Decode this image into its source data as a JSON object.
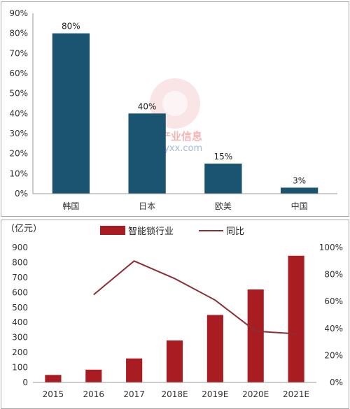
{
  "watermark": {
    "brand": "智研产业信息",
    "url": "chyxx.com"
  },
  "chart_data": [
    {
      "type": "bar",
      "categories": [
        "韩国",
        "日本",
        "欧美",
        "中国"
      ],
      "values": [
        80,
        40,
        15,
        3
      ],
      "data_labels": [
        "80%",
        "40%",
        "15%",
        "3%"
      ],
      "ylim": [
        0,
        90
      ],
      "yticks": [
        "0%",
        "10%",
        "20%",
        "30%",
        "40%",
        "50%",
        "60%",
        "70%",
        "80%",
        "90%"
      ],
      "grid": false,
      "bar_color": "#1b5470"
    },
    {
      "type": "bar",
      "unit_label": "（亿元）",
      "categories": [
        "2015",
        "2016",
        "2017",
        "2018E",
        "2019E",
        "2020E",
        "2021E"
      ],
      "series": [
        {
          "name": "智能锁行业",
          "type": "bar",
          "axis": "left",
          "color": "#a91d22",
          "values": [
            50,
            85,
            160,
            280,
            450,
            620,
            845
          ]
        },
        {
          "name": "同比",
          "type": "line",
          "axis": "right",
          "color": "#8b2d35",
          "values": [
            null,
            65,
            90,
            77,
            61,
            38,
            36
          ]
        }
      ],
      "ylim_left": [
        0,
        900
      ],
      "ylim_right": [
        0,
        100
      ],
      "yticks_left": [
        "0",
        "100",
        "200",
        "300",
        "400",
        "500",
        "600",
        "700",
        "800",
        "900"
      ],
      "yticks_right": [
        "0%",
        "20%",
        "40%",
        "60%",
        "80%",
        "100%"
      ],
      "legend_position": "top",
      "grid": false
    }
  ]
}
